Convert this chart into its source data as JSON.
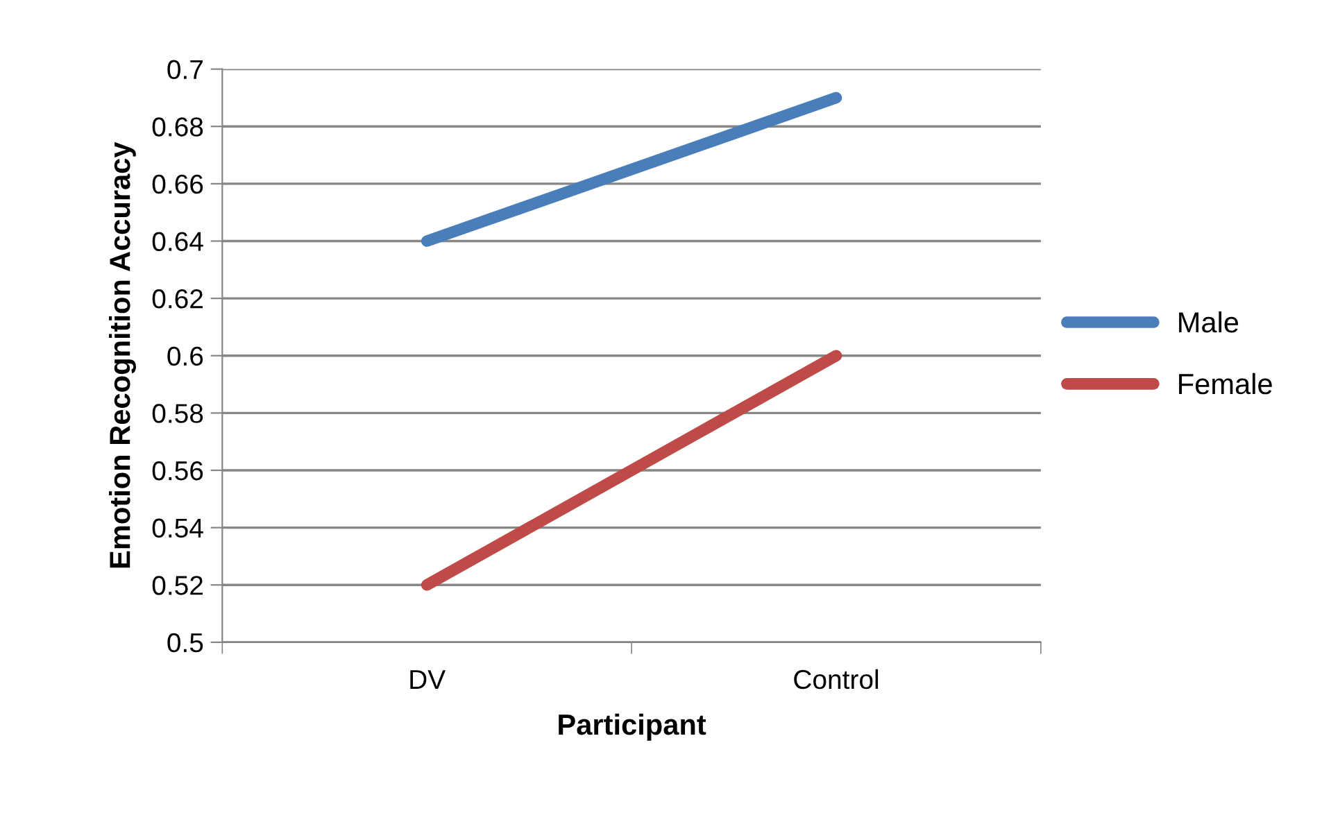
{
  "chart_data": {
    "type": "line",
    "xlabel": "Participant",
    "ylabel": "Emotion Recognition Accuracy",
    "categories": [
      "DV",
      "Control"
    ],
    "series": [
      {
        "name": "Male",
        "color": "#4a7ebb",
        "values": [
          0.64,
          0.69
        ]
      },
      {
        "name": "Female",
        "color": "#be4b48",
        "values": [
          0.52,
          0.6
        ]
      }
    ],
    "ylim": [
      0.5,
      0.7
    ],
    "yticks": [
      0.5,
      0.52,
      0.54,
      0.56,
      0.58,
      0.6,
      0.62,
      0.64,
      0.66,
      0.68,
      0.7
    ],
    "grid": "y",
    "legend": "right",
    "marker": "none",
    "line_style": "solid"
  }
}
